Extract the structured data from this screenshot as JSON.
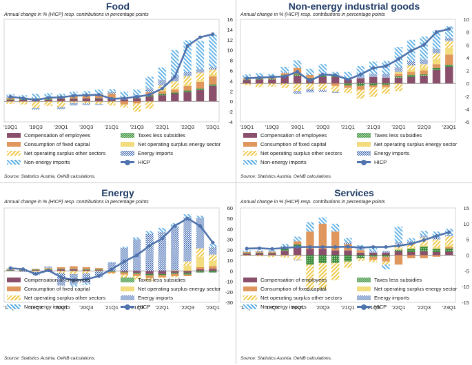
{
  "colors": {
    "compensation": "#8a4f6a",
    "taxes": "#3c8a3c",
    "capital": "#e0975e",
    "energy_sector": "#f2dc7e",
    "other_sectors": "#f0c94c",
    "energy_imports": "#3f68b0",
    "nonenergy_imports": "#5aaee6",
    "hicp": "#4f73ad"
  },
  "legend": {
    "compensation": "Compensation of employees",
    "taxes": "Taxes less subsidies",
    "capital": "Consumption of fixed capital",
    "energy_sector": "Net operating surplus energy sector",
    "other_sectors": "Net operating surplus other sectors",
    "energy_imports": "Energy imports",
    "nonenergy_imports": "Non-energy imports",
    "hicp": "HICP"
  },
  "chart_data": [
    {
      "type": "bar",
      "stacked": true,
      "title": "Food",
      "subtitle": "Annual change in % (HICP) resp. contributions in percentage points",
      "source": "Source: Statistics Austria, OeNB calculations.",
      "categories": [
        "'19Q1",
        "'19Q2",
        "'19Q3",
        "'19Q4",
        "'20Q1",
        "'20Q2",
        "'20Q3",
        "'20Q4",
        "'21Q1",
        "'21Q2",
        "'21Q3",
        "'21Q4",
        "'22Q1",
        "'22Q2",
        "'22Q3",
        "'22Q4",
        "'23Q1"
      ],
      "x_tick_labels": [
        "'19Q1",
        "'19Q3",
        "'20Q1",
        "'20Q3",
        "'21Q1",
        "'21Q3",
        "'22Q1",
        "'22Q3",
        "'23Q1"
      ],
      "ylim": [
        -4,
        16
      ],
      "yticks": [
        -4,
        -2,
        0,
        2,
        4,
        6,
        8,
        10,
        12,
        14,
        16
      ],
      "series": [
        {
          "key": "compensation",
          "name": "Compensation of employees",
          "values": [
            0.3,
            0.3,
            0.4,
            0.3,
            0.5,
            0.5,
            0.6,
            0.6,
            0.5,
            0.4,
            0.6,
            0.9,
            1.2,
            1.5,
            1.8,
            2.2,
            3.0
          ]
        },
        {
          "key": "taxes",
          "name": "Taxes less subsidies",
          "values": [
            0.1,
            0.1,
            0.0,
            0.1,
            0.1,
            0.1,
            0.0,
            0.1,
            0.1,
            0.0,
            0.1,
            0.3,
            0.3,
            0.2,
            0.3,
            0.3,
            0.3
          ]
        },
        {
          "key": "capital",
          "name": "Consumption of fixed capital",
          "values": [
            0.3,
            0.3,
            0.2,
            0.3,
            0.4,
            0.5,
            0.6,
            0.7,
            0.9,
            -0.6,
            -0.4,
            0.6,
            0.5,
            0.6,
            0.9,
            1.3,
            1.6
          ]
        },
        {
          "key": "energy_sector",
          "name": "Net operating surplus energy sector",
          "values": [
            0.0,
            0.0,
            0.0,
            0.0,
            0.0,
            0.0,
            0.0,
            0.0,
            0.0,
            0.0,
            0.0,
            0.0,
            0.2,
            0.2,
            0.3,
            0.3,
            0.4
          ]
        },
        {
          "key": "other_sectors",
          "name": "Net operating surplus other sectors",
          "values": [
            -0.5,
            -0.6,
            -1.3,
            -0.9,
            -1.1,
            -0.3,
            -0.4,
            -0.5,
            -0.8,
            -0.6,
            -1.6,
            -1.4,
            0.9,
            1.4,
            1.6,
            1.5,
            0.9
          ]
        },
        {
          "key": "energy_imports",
          "name": "Energy imports",
          "values": [
            0.2,
            0.1,
            -0.3,
            0.0,
            -0.4,
            -0.5,
            -0.3,
            -0.2,
            0.3,
            0.4,
            0.5,
            0.7,
            1.1,
            1.0,
            0.8,
            0.7,
            0.4
          ]
        },
        {
          "key": "nonenergy_imports",
          "name": "Non-energy imports",
          "values": [
            0.5,
            0.4,
            0.9,
            0.9,
            0.5,
            0.8,
            0.8,
            0.9,
            0.6,
            1.1,
            1.1,
            2.3,
            2.4,
            5.1,
            6.2,
            5.5,
            6.4
          ]
        },
        {
          "key": "hicp",
          "name": "HICP",
          "type": "line",
          "values": [
            0.9,
            0.6,
            0.3,
            0.7,
            0.8,
            1.1,
            1.2,
            1.3,
            0.5,
            0.6,
            0.9,
            1.3,
            2.5,
            4.8,
            10.8,
            12.5,
            13.1
          ]
        }
      ]
    },
    {
      "type": "bar",
      "stacked": true,
      "title": "Non-energy industrial goods",
      "subtitle": "Annual change in % (HICP) resp. contributions in percentage points",
      "source": "Source: Statistics Austria, OeNB calculations.",
      "categories": [
        "'19Q1",
        "'19Q2",
        "'19Q3",
        "'19Q4",
        "'20Q1",
        "'20Q2",
        "'20Q3",
        "'20Q4",
        "'21Q1",
        "'21Q2",
        "'21Q3",
        "'21Q4",
        "'22Q1",
        "'22Q2",
        "'22Q3",
        "'22Q4",
        "'23Q1"
      ],
      "x_tick_labels": [
        "'19Q1",
        "'19Q3",
        "'20Q1",
        "'20Q3",
        "'21Q1",
        "'21Q3",
        "'22Q1",
        "'22Q3",
        "'23Q1"
      ],
      "ylim": [
        -6,
        10
      ],
      "yticks": [
        -6,
        -4,
        -2,
        0,
        2,
        4,
        6,
        8,
        10
      ],
      "series": [
        {
          "key": "compensation",
          "name": "Compensation of employees",
          "values": [
            0.5,
            0.6,
            0.6,
            1.1,
            1.2,
            0.8,
            1.0,
            1.0,
            0.6,
            0.8,
            1.0,
            0.9,
            0.9,
            1.0,
            1.2,
            2.1,
            2.6
          ]
        },
        {
          "key": "taxes",
          "name": "Taxes less subsidies",
          "values": [
            0.1,
            0.1,
            0.1,
            0.2,
            0.2,
            0.1,
            0.3,
            0.2,
            -0.3,
            -0.4,
            -0.3,
            -0.2,
            0.2,
            0.3,
            0.2,
            0.3,
            0.3
          ]
        },
        {
          "key": "capital",
          "name": "Consumption of fixed capital",
          "values": [
            0.2,
            0.3,
            0.4,
            0.3,
            1.0,
            0.4,
            0.2,
            -0.4,
            -0.4,
            -0.6,
            -0.3,
            -0.4,
            0.4,
            0.5,
            0.6,
            0.6,
            1.6
          ]
        },
        {
          "key": "energy_sector",
          "name": "Net operating surplus energy sector",
          "values": [
            0.0,
            0.0,
            0.0,
            0.0,
            0.0,
            0.0,
            0.0,
            0.0,
            0.0,
            0.0,
            0.0,
            0.0,
            0.3,
            0.3,
            0.5,
            0.8,
            1.0
          ]
        },
        {
          "key": "other_sectors",
          "name": "Net operating surplus other sectors",
          "values": [
            -0.3,
            -0.6,
            -0.5,
            -0.7,
            -1.2,
            -0.9,
            -1.0,
            -0.9,
            -0.8,
            -1.4,
            -1.5,
            -1.0,
            -1.2,
            0.7,
            0.5,
            0.9,
            1.1
          ]
        },
        {
          "key": "energy_imports",
          "name": "Energy imports",
          "values": [
            0.1,
            0.1,
            0.0,
            0.1,
            -0.4,
            -0.5,
            -0.3,
            -0.2,
            0.2,
            0.3,
            0.5,
            0.6,
            0.7,
            0.7,
            0.7,
            0.7,
            0.5
          ]
        },
        {
          "key": "nonenergy_imports",
          "name": "Non-energy imports",
          "values": [
            0.5,
            0.5,
            0.4,
            0.9,
            1.2,
            1.0,
            1.5,
            0.6,
            1.0,
            1.6,
            1.9,
            2.0,
            3.2,
            3.3,
            3.6,
            2.9,
            1.8
          ]
        },
        {
          "key": "hicp",
          "name": "HICP",
          "type": "line",
          "values": [
            0.8,
            0.9,
            1.0,
            1.1,
            1.8,
            0.4,
            1.4,
            1.3,
            0.6,
            1.4,
            2.4,
            2.7,
            3.8,
            5.1,
            6.0,
            8.0,
            8.5
          ]
        }
      ]
    },
    {
      "type": "bar",
      "stacked": true,
      "title": "Energy",
      "subtitle": "Annual change in % (HICP) resp. contributions in percentage points",
      "source": "Source: Statistics Austria, OeNB calculations.",
      "categories": [
        "'19Q1",
        "'19Q2",
        "'19Q3",
        "'19Q4",
        "'20Q1",
        "'20Q2",
        "'20Q3",
        "'20Q4",
        "'21Q1",
        "'21Q2",
        "'21Q3",
        "'21Q4",
        "'22Q1",
        "'22Q2",
        "'22Q3",
        "'22Q4",
        "'23Q1"
      ],
      "x_tick_labels": [
        "'19Q1",
        "'19Q3",
        "'20Q1",
        "'20Q3",
        "'21Q1",
        "'21Q3",
        "'22Q1",
        "'22Q3",
        "'23Q1"
      ],
      "ylim": [
        -30,
        60
      ],
      "yticks": [
        -30,
        -20,
        -10,
        0,
        10,
        20,
        30,
        40,
        50,
        60
      ],
      "series": [
        {
          "key": "compensation",
          "name": "Compensation of employees",
          "values": [
            0.5,
            0.5,
            0.8,
            1.0,
            1.5,
            1.5,
            1.0,
            0.8,
            -0.5,
            -1.0,
            -2.0,
            -3.0,
            -3.0,
            -2.0,
            -2.0,
            1.5,
            2.0
          ]
        },
        {
          "key": "taxes",
          "name": "Taxes less subsidies",
          "values": [
            0.5,
            0.5,
            0.5,
            0.5,
            0.5,
            0.5,
            0.5,
            0.5,
            -0.5,
            -0.5,
            -1.0,
            -1.5,
            -1.0,
            -1.0,
            -1.5,
            -1.5,
            -1.5
          ]
        },
        {
          "key": "capital",
          "name": "Consumption of fixed capital",
          "values": [
            0.5,
            0.5,
            0.5,
            1.0,
            1.5,
            2.5,
            2.0,
            1.5,
            -1.0,
            -2.0,
            -2.0,
            -2.5,
            -2.0,
            -2.0,
            -1.5,
            2.0,
            2.5
          ]
        },
        {
          "key": "energy_sector",
          "name": "Net operating surplus energy sector",
          "values": [
            0.0,
            0.0,
            0.0,
            0.0,
            0.0,
            0.0,
            0.0,
            0.0,
            0.0,
            0.0,
            0.0,
            0.0,
            0.0,
            0.5,
            5.0,
            10.0,
            5.0
          ]
        },
        {
          "key": "other_sectors",
          "name": "Net operating surplus other sectors",
          "values": [
            0.3,
            -0.5,
            -1.0,
            0.5,
            -2.0,
            -3.0,
            -2.5,
            -0.5,
            -1.0,
            -3.0,
            -3.0,
            -2.5,
            -1.0,
            -1.0,
            4.0,
            8.0,
            6.0
          ]
        },
        {
          "key": "energy_imports",
          "name": "Energy imports",
          "values": [
            0.5,
            -0.5,
            -3.0,
            1.0,
            -12.0,
            -10.0,
            -9.0,
            -5.0,
            8.0,
            22.0,
            30.0,
            35.0,
            37.0,
            42.0,
            42.0,
            29.0,
            7.0
          ]
        },
        {
          "key": "nonenergy_imports",
          "name": "Non-energy imports",
          "values": [
            0.3,
            0.3,
            0.2,
            0.3,
            0.0,
            -2.0,
            -2.0,
            -0.5,
            0.5,
            1.0,
            2.0,
            3.0,
            4.0,
            3.0,
            3.0,
            2.0,
            3.0
          ]
        },
        {
          "key": "hicp",
          "name": "HICP",
          "type": "line",
          "values": [
            2.6,
            1.7,
            -3.0,
            0.5,
            -6.0,
            -9.0,
            -8.0,
            -5.0,
            1.5,
            9.0,
            15.0,
            24.0,
            31.0,
            43.0,
            50.0,
            43.0,
            27.0
          ]
        }
      ]
    },
    {
      "type": "bar",
      "stacked": true,
      "title": "Services",
      "subtitle": "Annual change in % (HICP) resp. contributions in percentage points",
      "source": "Source: Statistics Austria, OeNB calculations.",
      "categories": [
        "'19Q1",
        "'19Q2",
        "'19Q3",
        "'19Q4",
        "'20Q1",
        "'20Q2",
        "'20Q3",
        "'20Q4",
        "'21Q1",
        "'21Q2",
        "'21Q3",
        "'21Q4",
        "'22Q1",
        "'22Q2",
        "'22Q3",
        "'22Q4",
        "'23Q1"
      ],
      "x_tick_labels": [
        "'19Q1",
        "'19Q3",
        "'20Q1",
        "'20Q3",
        "'21Q1",
        "'21Q3",
        "'22Q1",
        "'22Q3",
        "'23Q1"
      ],
      "ylim": [
        -15,
        15
      ],
      "yticks": [
        -15,
        -10,
        -5,
        0,
        5,
        10,
        15
      ],
      "series": [
        {
          "key": "compensation",
          "name": "Compensation of employees",
          "values": [
            0.5,
            0.6,
            0.6,
            1.4,
            2.5,
            2.0,
            2.0,
            1.5,
            1.5,
            0.8,
            0.8,
            0.8,
            1.2,
            1.0,
            1.2,
            1.0,
            1.1
          ]
        },
        {
          "key": "taxes",
          "name": "Taxes less subsidies",
          "values": [
            0.2,
            0.2,
            0.2,
            0.6,
            0.9,
            -3.0,
            -2.5,
            -2.5,
            -2.0,
            -1.0,
            -0.5,
            -0.5,
            0.5,
            1.0,
            1.5,
            1.0,
            1.0
          ]
        },
        {
          "key": "capital",
          "name": "Consumption of fixed capital",
          "values": [
            0.3,
            0.3,
            0.3,
            0.6,
            1.0,
            5.5,
            8.0,
            6.0,
            2.0,
            0.8,
            -1.0,
            -1.5,
            -3.0,
            -1.0,
            -1.0,
            -0.5,
            0.5
          ]
        },
        {
          "key": "energy_sector",
          "name": "Net operating surplus energy sector",
          "values": [
            0.0,
            0.0,
            0.0,
            0.0,
            0.0,
            0.0,
            0.0,
            0.0,
            0.0,
            0.0,
            0.0,
            0.0,
            0.3,
            0.3,
            0.4,
            0.5,
            0.6
          ]
        },
        {
          "key": "other_sectors",
          "name": "Net operating surplus other sectors",
          "values": [
            -0.3,
            -0.4,
            -0.6,
            -0.8,
            -1.5,
            -8.0,
            -8.5,
            -5.5,
            -2.0,
            -0.8,
            -0.8,
            -1.0,
            1.5,
            1.5,
            2.5,
            2.5,
            2.8
          ]
        },
        {
          "key": "energy_imports",
          "name": "Energy imports",
          "values": [
            0.1,
            0.1,
            0.0,
            0.2,
            -0.2,
            -0.3,
            -0.2,
            0.0,
            0.5,
            0.4,
            0.5,
            0.5,
            0.6,
            0.6,
            0.6,
            0.5,
            0.4
          ]
        },
        {
          "key": "nonenergy_imports",
          "name": "Non-energy imports",
          "values": [
            0.4,
            0.3,
            0.5,
            0.8,
            1.5,
            3.0,
            2.0,
            2.5,
            1.5,
            1.2,
            1.6,
            -1.5,
            5.0,
            1.0,
            1.5,
            2.0,
            2.0
          ]
        },
        {
          "key": "hicp",
          "name": "HICP",
          "type": "line",
          "values": [
            2.1,
            2.2,
            2.0,
            2.3,
            2.6,
            2.6,
            2.6,
            2.6,
            2.7,
            2.4,
            2.6,
            2.6,
            3.0,
            3.6,
            4.8,
            6.1,
            7.3
          ]
        }
      ]
    }
  ]
}
